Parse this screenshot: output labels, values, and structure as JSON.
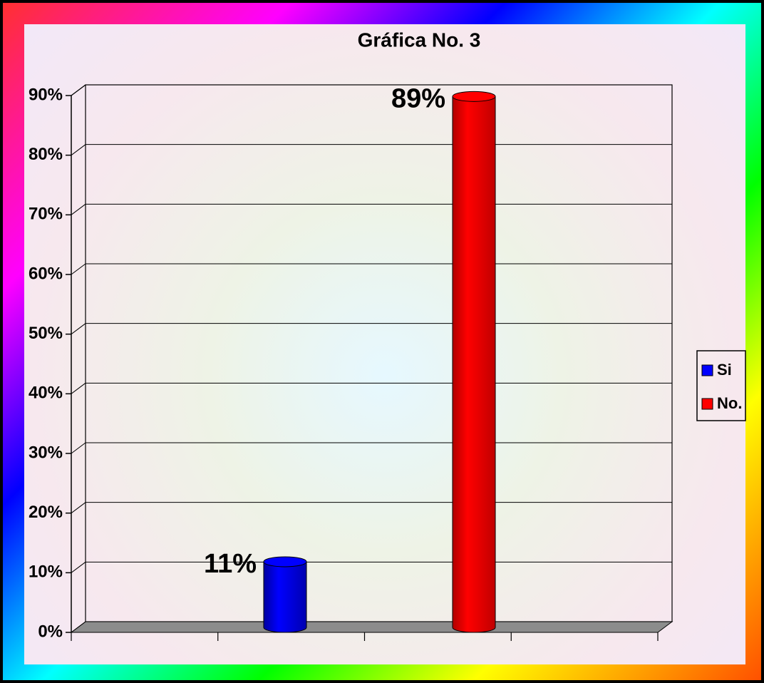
{
  "chart_data": {
    "type": "bar3d",
    "title": "Gráfica  No.  3",
    "categories": [
      null
    ],
    "series": [
      {
        "name": "Si",
        "color": "#0000ff",
        "values": [
          11
        ],
        "value_labels": [
          "11%"
        ]
      },
      {
        "name": "No.",
        "color": "#ff0000",
        "values": [
          89
        ],
        "value_labels": [
          "89%"
        ]
      }
    ],
    "ylim": [
      0,
      90
    ],
    "yticks": [
      {
        "value": 0,
        "label": "0%"
      },
      {
        "value": 10,
        "label": "10%"
      },
      {
        "value": 20,
        "label": "20%"
      },
      {
        "value": 30,
        "label": "30%"
      },
      {
        "value": 40,
        "label": "40%"
      },
      {
        "value": 50,
        "label": "50%"
      },
      {
        "value": 60,
        "label": "60%"
      },
      {
        "value": 70,
        "label": "70%"
      },
      {
        "value": 80,
        "label": "80%"
      },
      {
        "value": 90,
        "label": "90%"
      }
    ],
    "grid": true,
    "legend": "right"
  }
}
